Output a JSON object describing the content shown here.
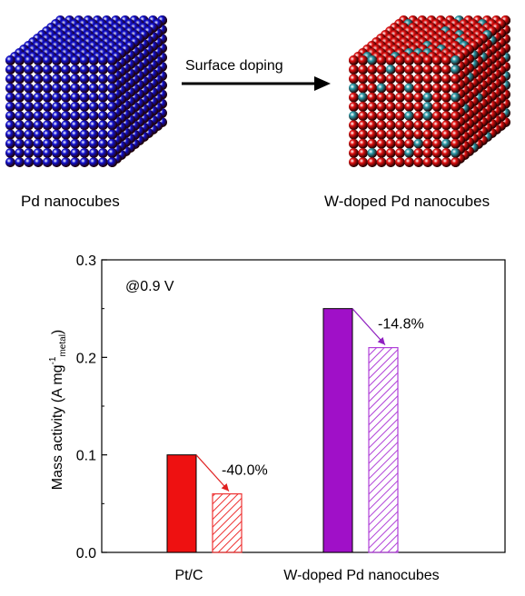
{
  "schematic": {
    "left_label": "Pd nanocubes",
    "arrow_label": "Surface doping",
    "right_label": "W-doped Pd nanocubes",
    "colors": {
      "pd_sphere": "#1010d0",
      "pd_sphere_doped": "#e01010",
      "w_dopant": "#2a9aa8"
    }
  },
  "chart_data": {
    "type": "bar",
    "annotation": "@0.9 V",
    "ylabel_main": "Mass activity  (A mg",
    "ylabel_sup": "-1",
    "ylabel_sub": "metal",
    "ylabel_close": ")",
    "ylim": [
      0,
      0.3
    ],
    "yticks": [
      "0.0",
      "0.1",
      "0.2",
      "0.3"
    ],
    "categories": [
      "Pt/C",
      "W-doped Pd nanocubes"
    ],
    "groups": [
      {
        "category": "Pt/C",
        "initial": 0.1,
        "after": 0.06,
        "change": "-40.0%",
        "color": "#ee1111",
        "hatch_color": "#ee3333"
      },
      {
        "category": "W-doped Pd nanocubes",
        "initial": 0.25,
        "after": 0.21,
        "change": "-14.8%",
        "color": "#a010c8",
        "hatch_color": "#b040d8"
      }
    ],
    "arrow_colors": [
      "#e02020",
      "#9020c0"
    ]
  }
}
